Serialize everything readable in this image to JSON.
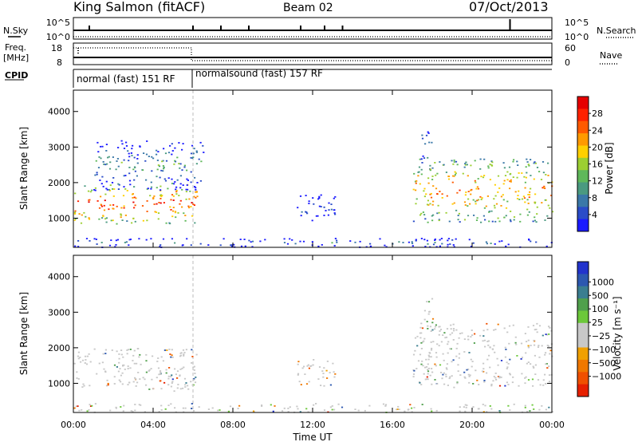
{
  "header": {
    "station": "King Salmon (fitACF)",
    "beam": "Beam 02",
    "date": "07/Oct/2013"
  },
  "top_panels": {
    "nsky_label": "N.Sky",
    "nsearch_label": "N.Search",
    "freq_label": "Freq.",
    "freq_unit": "[MHz]",
    "nave_label": "Nave",
    "cpid_label": "CPID",
    "sky_ticks_left": [
      "10^5",
      "10^0"
    ],
    "sky_ticks_right": [
      "10^5",
      "10^0"
    ],
    "freq_ticks_left": [
      "18",
      "8"
    ],
    "freq_ticks_right": [
      "60",
      "0"
    ],
    "cpid_segments": [
      {
        "label": "normal (fast) 151 RF",
        "start_hour": 0,
        "end_hour": 6
      },
      {
        "label": "normalsound (fast) 157 RF",
        "start_hour": 6,
        "end_hour": 24
      }
    ]
  },
  "chart_data": [
    {
      "type": "heatmap",
      "name": "power",
      "ylabel": "Slant Range [km]",
      "ylim": [
        180,
        4600
      ],
      "yticks": [
        "1000",
        "2000",
        "3000",
        "4000"
      ],
      "colorbar": {
        "label": "Power [dB]",
        "ticks": [
          "4",
          "8",
          "12",
          "16",
          "20",
          "24",
          "28"
        ],
        "range": [
          0,
          32
        ],
        "colors": [
          "#1a1aff",
          "#2a4cc8",
          "#3a78a8",
          "#4a9a80",
          "#5fb85a",
          "#9ccf32",
          "#ffd000",
          "#ff9a00",
          "#ff5a00",
          "#ff2200",
          "#e60000"
        ]
      },
      "echo_regions": [
        {
          "t0": 0.0,
          "t1": 6.2,
          "r0": 850,
          "r1": 2000,
          "level": 0.85
        },
        {
          "t0": 1.0,
          "t1": 6.5,
          "r0": 1800,
          "r1": 3200,
          "level": 0.35
        },
        {
          "t0": 11.2,
          "t1": 13.2,
          "r0": 900,
          "r1": 1700,
          "level": 0.15
        },
        {
          "t0": 17.0,
          "t1": 24.0,
          "r0": 900,
          "r1": 2700,
          "level": 0.75
        },
        {
          "t0": 17.4,
          "t1": 18.0,
          "r0": 2500,
          "r1": 3500,
          "level": 0.4
        },
        {
          "t0": 0.0,
          "t1": 24.0,
          "r0": 200,
          "r1": 450,
          "level": 0.2
        }
      ]
    },
    {
      "type": "heatmap",
      "name": "velocity",
      "ylabel": "Slant Range [km]",
      "xlabel": "Time UT",
      "ylim": [
        180,
        4600
      ],
      "yticks": [
        "1000",
        "2000",
        "3000",
        "4000"
      ],
      "xticks": [
        "00:00",
        "04:00",
        "08:00",
        "12:00",
        "16:00",
        "20:00",
        "00:00"
      ],
      "xlim_hours": [
        0,
        24
      ],
      "colorbar": {
        "label": "Velocity [m s⁻¹]",
        "ticks": [
          "1000",
          "500",
          "100",
          "25",
          "−25",
          "−100",
          "−500",
          "−1000"
        ],
        "colors": [
          "#2233cc",
          "#2c58b0",
          "#3a7e90",
          "#50a04c",
          "#6cc83a",
          "#c8c8c8",
          "#c8c8c8",
          "#f0a000",
          "#f07800",
          "#f05000",
          "#e62000"
        ]
      },
      "echo_regions": [
        {
          "t0": 0.0,
          "t1": 6.2,
          "r0": 850,
          "r1": 2000,
          "level": 0.5
        },
        {
          "t0": 4.2,
          "t1": 5.6,
          "r0": 800,
          "r1": 1500,
          "level": 0.85
        },
        {
          "t0": 11.2,
          "t1": 13.2,
          "r0": 900,
          "r1": 1700,
          "level": 0.75
        },
        {
          "t0": 17.0,
          "t1": 24.0,
          "r0": 900,
          "r1": 2700,
          "level": 0.5
        },
        {
          "t0": 17.4,
          "t1": 18.0,
          "r0": 1200,
          "r1": 3500,
          "level": 0.3
        },
        {
          "t0": 0.0,
          "t1": 24.0,
          "r0": 200,
          "r1": 450,
          "level": 0.35
        }
      ]
    }
  ]
}
